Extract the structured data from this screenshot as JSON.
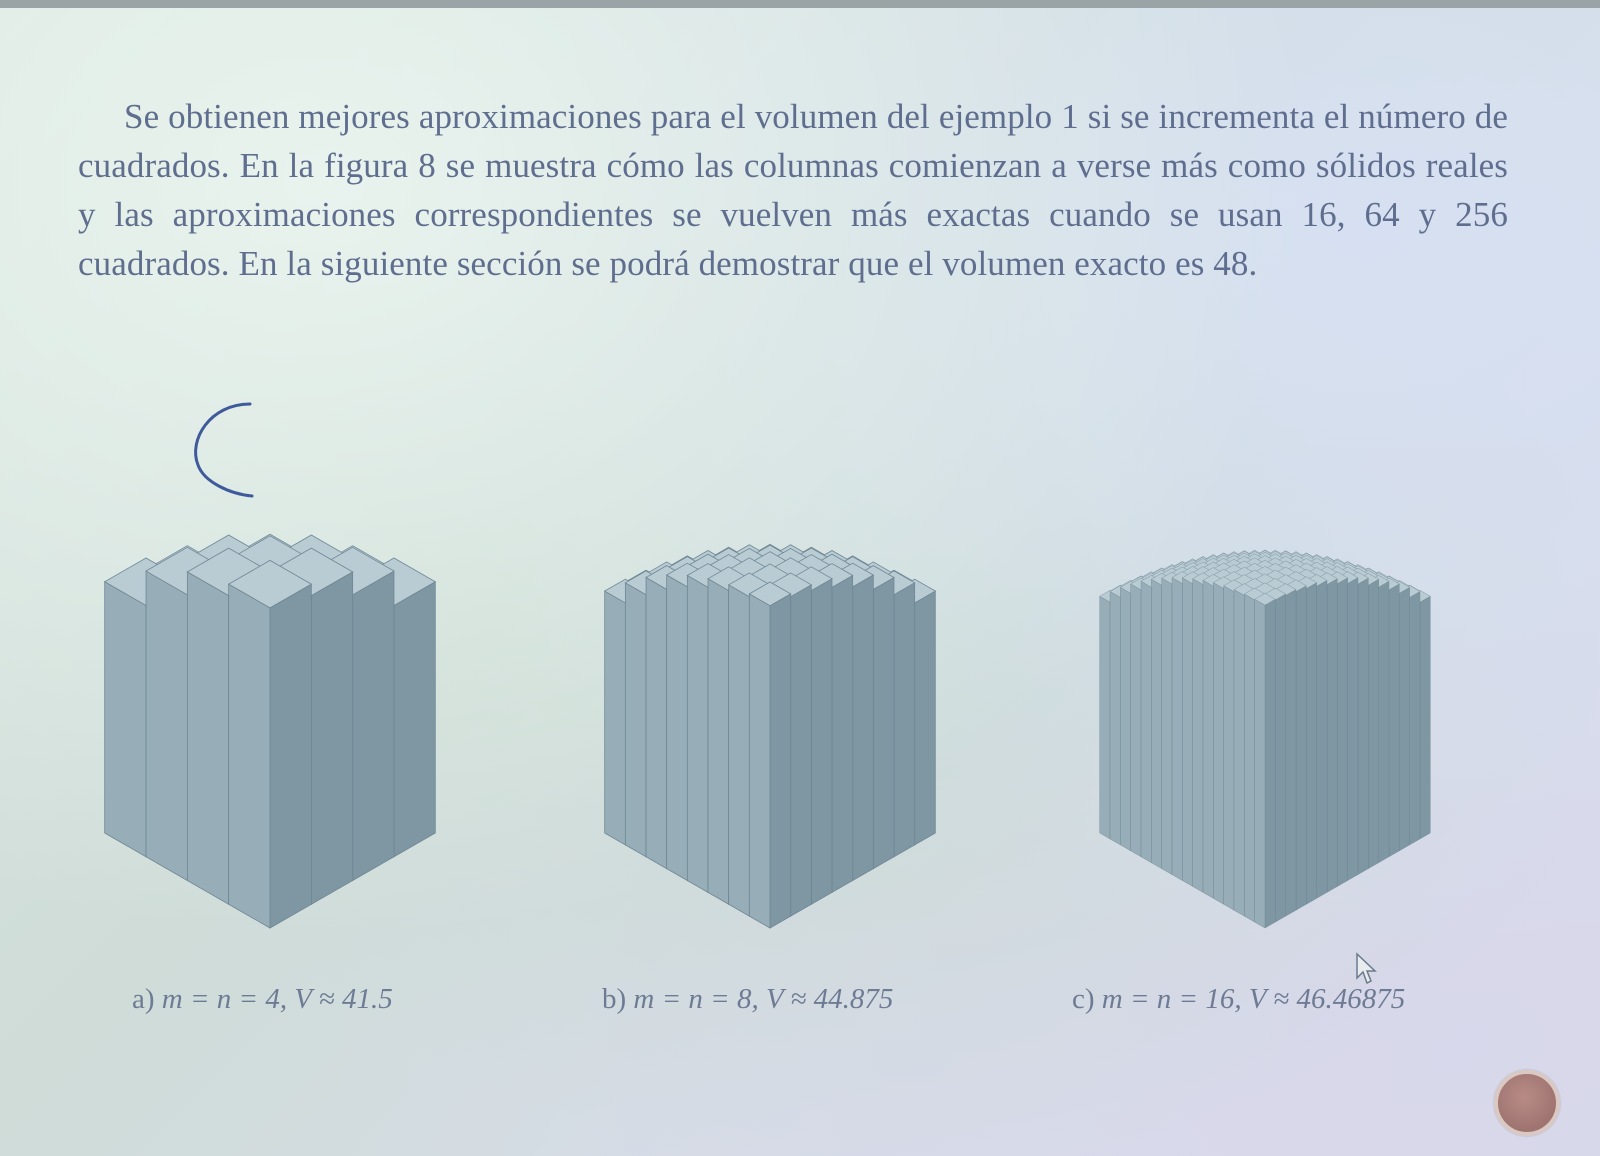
{
  "paragraph": "Se obtienen mejores aproximaciones para el volumen del ejemplo 1 si se incrementa el número de cuadrados. En la figura 8 se muestra cómo las columnas comienzan a verse más como sólidos reales y las aproximaciones correspondientes se vuelven más exactas cuando se usan 16, 64 y 256 cuadrados. En la siguiente sección se podrá demostrar que el volumen exacto es 48.",
  "figures": [
    {
      "label": "a)",
      "caption": "m = n = 4, V ≈ 41.5",
      "grid": 4
    },
    {
      "label": "b)",
      "caption": "m = n = 8, V ≈ 44.875",
      "grid": 8
    },
    {
      "label": "c)",
      "caption": "m = n = 16, V ≈ 46.46875",
      "grid": 16
    }
  ],
  "colors": {
    "text": "#5f6e8e",
    "solid_top": "#b9ccd4",
    "solid_left": "#97aeb8",
    "solid_right": "#7f97a3",
    "nav_button": "#a87b77"
  },
  "icons": {
    "nav": "circle-button-icon",
    "annotation": "pen-arc-icon",
    "cursor": "arrow-cursor-icon"
  }
}
